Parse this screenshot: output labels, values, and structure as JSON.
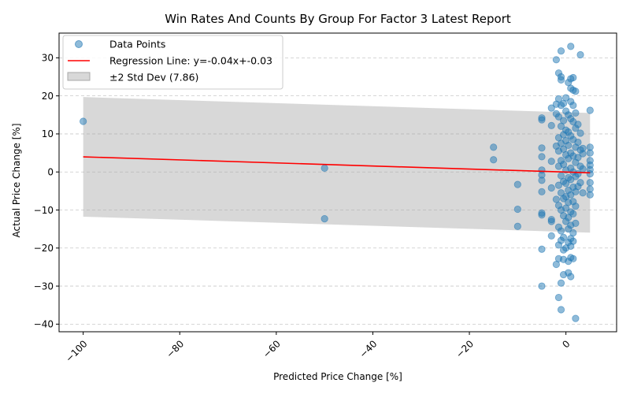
{
  "chart_data": {
    "type": "scatter",
    "title": "Win Rates And Counts By Group For Factor 3 Latest Report",
    "xlabel": "Predicted Price Change [%]",
    "ylabel": "Actual Price Change [%]",
    "xlim": [
      -105,
      10.5
    ],
    "ylim": [
      -42,
      36.5
    ],
    "xticks": [
      -100,
      -80,
      -60,
      -40,
      -20,
      0
    ],
    "xtick_labels": [
      "−100",
      "−80",
      "−60",
      "−40",
      "−20",
      "0"
    ],
    "yticks": [
      -40,
      -30,
      -20,
      -10,
      0,
      10,
      20,
      30
    ],
    "grid": "horizontal dashed",
    "legend_position": "top-left",
    "legend": {
      "points": "Data Points",
      "regression": "Regression Line: y=-0.04x+-0.03",
      "band": "±2 Std Dev (7.86)"
    },
    "colors": {
      "points": "#1f77b4",
      "regression": "#ff0000",
      "band": "#a9a9a9"
    },
    "regression": {
      "slope": -0.04,
      "intercept": -0.03,
      "x_range": [
        -100,
        5
      ]
    },
    "band": {
      "std": 7.86,
      "k": 2
    },
    "points": [
      [
        -100,
        13.3
      ],
      [
        -50,
        1.0
      ],
      [
        -50,
        -12.3
      ],
      [
        -15,
        6.5
      ],
      [
        -15,
        3.2
      ],
      [
        -10,
        -3.3
      ],
      [
        -10,
        -9.8
      ],
      [
        -10,
        -14.3
      ],
      [
        -5,
        14.2
      ],
      [
        -5,
        13.7
      ],
      [
        -5,
        6.3
      ],
      [
        -5,
        4.0
      ],
      [
        -5,
        0.5
      ],
      [
        -5,
        -0.8
      ],
      [
        -5,
        -2.2
      ],
      [
        -5,
        -5.2
      ],
      [
        -5,
        -10.8
      ],
      [
        -5,
        -11.3
      ],
      [
        -5,
        -20.3
      ],
      [
        -5,
        -30.0
      ],
      [
        -3,
        16.8
      ],
      [
        -3,
        12.2
      ],
      [
        -3,
        2.8
      ],
      [
        -3,
        -4.2
      ],
      [
        -3,
        -12.5
      ],
      [
        -3,
        -13.0
      ],
      [
        -3,
        -16.8
      ],
      [
        -2,
        29.5
      ],
      [
        -2,
        17.8
      ],
      [
        -2,
        15.3
      ],
      [
        -2,
        6.8
      ],
      [
        -2,
        -7.2
      ],
      [
        -2,
        -24.3
      ],
      [
        -1.5,
        26.0
      ],
      [
        -1.5,
        19.2
      ],
      [
        -1.5,
        14.5
      ],
      [
        -1.5,
        9.0
      ],
      [
        -1.5,
        5.5
      ],
      [
        -1.5,
        1.5
      ],
      [
        -1.5,
        -3.5
      ],
      [
        -1.5,
        -8.8
      ],
      [
        -1.5,
        -14.5
      ],
      [
        -1.5,
        -19.2
      ],
      [
        -1.5,
        -22.8
      ],
      [
        -1.5,
        -33.0
      ],
      [
        -1,
        31.8
      ],
      [
        -1,
        25.0
      ],
      [
        -1,
        24.2
      ],
      [
        -1,
        17.5
      ],
      [
        -1,
        12.0
      ],
      [
        -1,
        7.5
      ],
      [
        -1,
        3.0
      ],
      [
        -1,
        -1.0
      ],
      [
        -1,
        -5.5
      ],
      [
        -1,
        -10.0
      ],
      [
        -1,
        -15.5
      ],
      [
        -1,
        -18.0
      ],
      [
        -1,
        -29.2
      ],
      [
        -1,
        -36.2
      ],
      [
        -0.5,
        18.0
      ],
      [
        -0.5,
        13.5
      ],
      [
        -0.5,
        9.8
      ],
      [
        -0.5,
        6.0
      ],
      [
        -0.5,
        2.0
      ],
      [
        -0.5,
        -2.5
      ],
      [
        -0.5,
        -7.0
      ],
      [
        -0.5,
        -11.5
      ],
      [
        -0.5,
        -17.2
      ],
      [
        -0.5,
        -20.5
      ],
      [
        -0.5,
        -23.0
      ],
      [
        -0.5,
        -27.0
      ],
      [
        0,
        19.5
      ],
      [
        0,
        16.0
      ],
      [
        0,
        11.0
      ],
      [
        0,
        8.2
      ],
      [
        0,
        4.5
      ],
      [
        0,
        0.5
      ],
      [
        0,
        -3.0
      ],
      [
        0,
        -6.5
      ],
      [
        0,
        -9.5
      ],
      [
        0,
        -13.0
      ],
      [
        0,
        -20.0
      ],
      [
        0.5,
        23.5
      ],
      [
        0.5,
        15.0
      ],
      [
        0.5,
        10.5
      ],
      [
        0.5,
        7.0
      ],
      [
        0.5,
        3.5
      ],
      [
        0.5,
        -1.5
      ],
      [
        0.5,
        -4.8
      ],
      [
        0.5,
        -8.0
      ],
      [
        0.5,
        -12.0
      ],
      [
        0.5,
        -15.0
      ],
      [
        0.5,
        -18.5
      ],
      [
        0.5,
        -23.5
      ],
      [
        0.5,
        -26.5
      ],
      [
        1,
        33.0
      ],
      [
        1,
        24.5
      ],
      [
        1,
        22.0
      ],
      [
        1,
        18.5
      ],
      [
        1,
        14.0
      ],
      [
        1,
        9.5
      ],
      [
        1,
        5.0
      ],
      [
        1,
        1.0
      ],
      [
        1,
        -2.0
      ],
      [
        1,
        -6.0
      ],
      [
        1,
        -10.5
      ],
      [
        1,
        -14.0
      ],
      [
        1,
        -17.5
      ],
      [
        1,
        -19.5
      ],
      [
        1,
        -22.5
      ],
      [
        1,
        -27.5
      ],
      [
        1.5,
        24.8
      ],
      [
        1.5,
        21.5
      ],
      [
        1.5,
        17.5
      ],
      [
        1.5,
        13.2
      ],
      [
        1.5,
        8.5
      ],
      [
        1.5,
        4.2
      ],
      [
        1.5,
        0.0
      ],
      [
        1.5,
        -4.0
      ],
      [
        1.5,
        -7.8
      ],
      [
        1.5,
        -11.0
      ],
      [
        1.5,
        -16.0
      ],
      [
        1.5,
        -18.2
      ],
      [
        1.5,
        -22.8
      ],
      [
        2,
        21.2
      ],
      [
        2,
        15.5
      ],
      [
        2,
        11.5
      ],
      [
        2,
        6.5
      ],
      [
        2,
        2.5
      ],
      [
        2,
        -1.2
      ],
      [
        2,
        -5.2
      ],
      [
        2,
        -9.0
      ],
      [
        2,
        -13.5
      ],
      [
        2,
        -38.5
      ],
      [
        2.5,
        12.5
      ],
      [
        2.5,
        7.8
      ],
      [
        2.5,
        3.8
      ],
      [
        2.5,
        -0.5
      ],
      [
        2.5,
        -3.8
      ],
      [
        3,
        30.8
      ],
      [
        3,
        10.2
      ],
      [
        3,
        5.8
      ],
      [
        3,
        1.5
      ],
      [
        3,
        -2.8
      ],
      [
        3.5,
        6.2
      ],
      [
        3.5,
        4.8
      ],
      [
        3.5,
        0.8
      ],
      [
        3.5,
        -5.5
      ],
      [
        5,
        16.2
      ],
      [
        5,
        6.5
      ],
      [
        5,
        5.0
      ],
      [
        5,
        3.0
      ],
      [
        5,
        1.8
      ],
      [
        5,
        0.6
      ],
      [
        5,
        -0.5
      ],
      [
        5,
        -2.8
      ],
      [
        5,
        -4.5
      ],
      [
        5,
        -6.0
      ]
    ]
  }
}
